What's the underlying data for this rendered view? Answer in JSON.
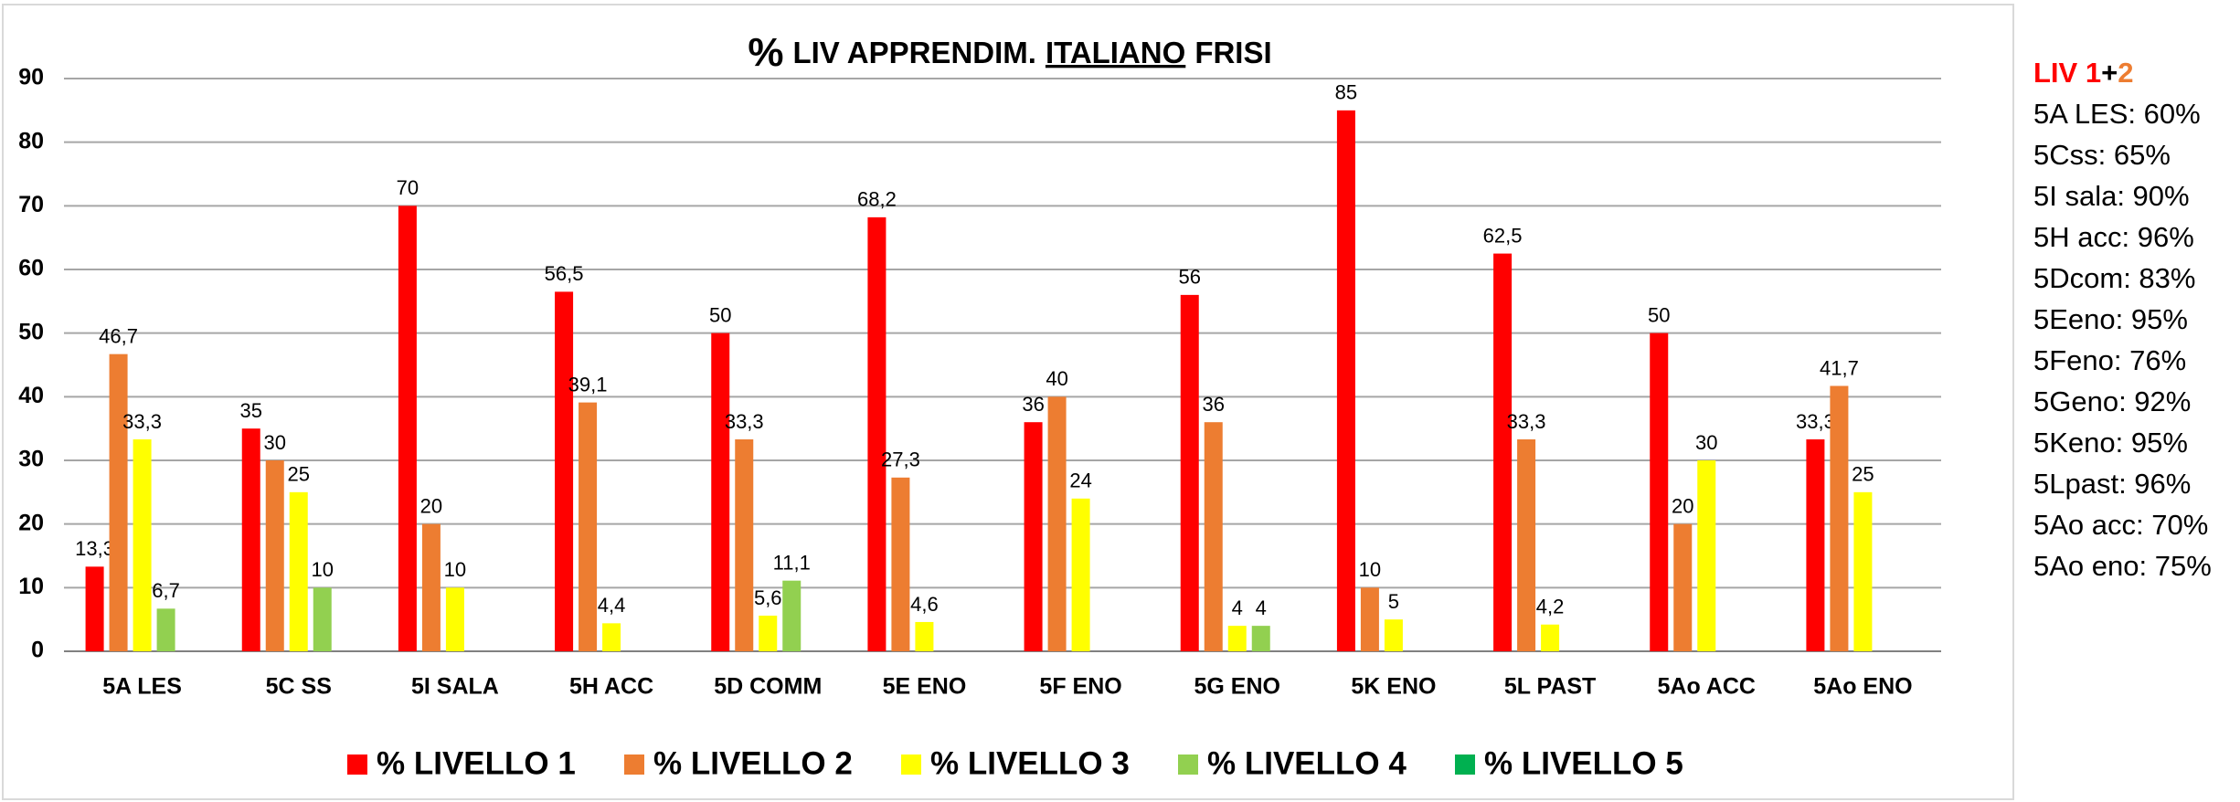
{
  "chart_data": {
    "type": "bar",
    "title": [
      "%",
      "LIV APPRENDIM.",
      "ITALIANO",
      "FRISI"
    ],
    "categories": [
      "5A LES",
      "5C SS",
      "5I SALA",
      "5H ACC",
      "5D COMM",
      "5E ENO",
      "5F ENO",
      "5G ENO",
      "5K ENO",
      "5L PAST",
      "5Ao ACC",
      "5Ao ENO"
    ],
    "series": [
      {
        "name": "% LIVELLO 1",
        "color": "#ff0000",
        "values": [
          13.3,
          35,
          70,
          56.5,
          50,
          68.2,
          36,
          56,
          85,
          62.5,
          50,
          33.3
        ],
        "value_labels": [
          "13,3",
          "35",
          "70",
          "56,5",
          "50",
          "68,2",
          "36",
          "56",
          "85",
          "62,5",
          "50",
          "33,3"
        ]
      },
      {
        "name": "% LIVELLO 2",
        "color": "#ed7d31",
        "values": [
          46.7,
          30,
          20,
          39.1,
          33.3,
          27.3,
          40,
          36,
          10,
          33.3,
          20,
          41.7
        ],
        "value_labels": [
          "46,7",
          "30",
          "20",
          "39,1",
          "33,3",
          "27,3",
          "40",
          "36",
          "10",
          "33,3",
          "20",
          "41,7"
        ]
      },
      {
        "name": "% LIVELLO 3",
        "color": "#ffff00",
        "values": [
          33.3,
          25,
          10,
          4.4,
          5.6,
          4.6,
          24,
          4,
          5,
          4.2,
          30,
          25
        ],
        "value_labels": [
          "33,3",
          "25",
          "10",
          "4,4",
          "5,6",
          "4,6",
          "24",
          "4",
          "5",
          "4,2",
          "30",
          "25"
        ]
      },
      {
        "name": "% LIVELLO 4",
        "color": "#92d050",
        "values": [
          6.7,
          10,
          null,
          null,
          11.1,
          null,
          null,
          4,
          null,
          null,
          null,
          null
        ],
        "value_labels": [
          "6,7",
          "10",
          null,
          null,
          "11,1",
          null,
          null,
          "4",
          null,
          null,
          null,
          null
        ]
      },
      {
        "name": "% LIVELLO 5",
        "color": "#00b050",
        "values": [
          null,
          null,
          null,
          null,
          null,
          null,
          null,
          null,
          null,
          null,
          null,
          null
        ]
      }
    ],
    "ylim": [
      0,
      90
    ],
    "yticks": [
      0,
      10,
      20,
      30,
      40,
      50,
      60,
      70,
      80,
      90
    ],
    "grid": true,
    "legend": "bottom"
  },
  "side_note": {
    "heading": [
      "LIV 1",
      "+",
      "2"
    ],
    "heading_colors": [
      "#ff0000",
      "#000000",
      "#ed7d31"
    ],
    "lines": [
      "5A LES: 60%",
      "5Css: 65%",
      "5I sala: 90%",
      "5H acc: 96%",
      "5Dcom: 83%",
      "5Eeno: 95%",
      "5Feno: 76%",
      "5Geno: 92%",
      "5Keno: 95%",
      "5Lpast: 96%",
      "5Ao acc: 70%",
      "5Ao eno: 75%"
    ]
  }
}
